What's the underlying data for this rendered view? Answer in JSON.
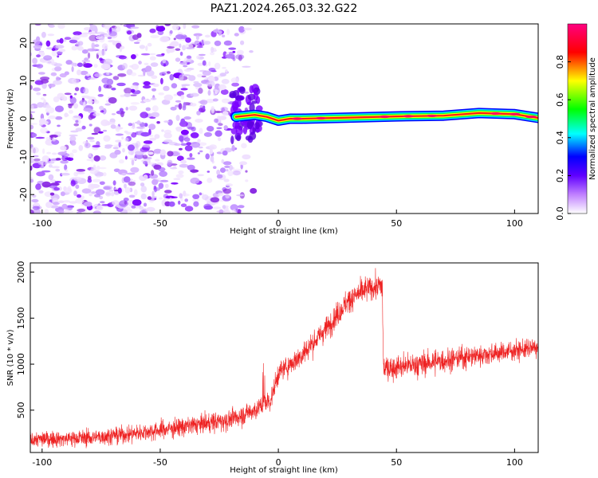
{
  "figure": {
    "title": "PAZ1.2024.265.03.32.G22"
  },
  "chart_data": [
    {
      "type": "heatmap",
      "xlabel": "Height of straight line (km)",
      "ylabel": "Frequency (Hz)",
      "xlim": [
        -105,
        110
      ],
      "ylim": [
        -25,
        25
      ],
      "xticks": [
        -100,
        -50,
        0,
        50,
        100
      ],
      "yticks": [
        20,
        10,
        0,
        -10,
        -20
      ],
      "colorbar": {
        "label": "Normalized spectral amplitude",
        "range": [
          0,
          1
        ],
        "ticks": [
          0.0,
          0.2,
          0.4,
          0.6,
          0.8
        ],
        "colors": [
          "#ffffff",
          "#8b00ff",
          "#0000ff",
          "#00ffff",
          "#00ff00",
          "#ffff00",
          "#ff0000",
          "#ff0080"
        ]
      },
      "noise_region": {
        "x_start": -105,
        "x_end": -8,
        "f_min": -25,
        "f_max": 25,
        "amplitude": "low (0.0-0.25)"
      },
      "ridge": [
        {
          "x": -18,
          "f": 0.5
        },
        {
          "x": -10,
          "f": 1.0
        },
        {
          "x": -5,
          "f": 0.5
        },
        {
          "x": 0,
          "f": -0.5
        },
        {
          "x": 5,
          "f": 0.0
        },
        {
          "x": 10,
          "f": 0.0
        },
        {
          "x": 30,
          "f": 0.3
        },
        {
          "x": 50,
          "f": 0.6
        },
        {
          "x": 70,
          "f": 0.8
        },
        {
          "x": 85,
          "f": 1.5
        },
        {
          "x": 100,
          "f": 1.2
        },
        {
          "x": 110,
          "f": 0.2
        }
      ]
    },
    {
      "type": "line",
      "xlabel": "Height of straight line (km)",
      "ylabel": "SNR (10 * v/v)",
      "xlim": [
        -105,
        110
      ],
      "ylim": [
        40,
        2100
      ],
      "xticks": [
        -100,
        -50,
        0,
        50,
        100
      ],
      "yticks": [
        500,
        1000,
        1500,
        2000
      ],
      "color": "#ee2222",
      "trend": [
        {
          "x": -105,
          "y": 180
        },
        {
          "x": -80,
          "y": 200
        },
        {
          "x": -60,
          "y": 250
        },
        {
          "x": -40,
          "y": 320
        },
        {
          "x": -20,
          "y": 400
        },
        {
          "x": -10,
          "y": 500
        },
        {
          "x": -3,
          "y": 620
        },
        {
          "x": 0,
          "y": 900
        },
        {
          "x": 10,
          "y": 1100
        },
        {
          "x": 20,
          "y": 1380
        },
        {
          "x": 30,
          "y": 1700
        },
        {
          "x": 38,
          "y": 1820
        },
        {
          "x": 44,
          "y": 1850
        },
        {
          "x": 44.5,
          "y": 950
        },
        {
          "x": 60,
          "y": 1000
        },
        {
          "x": 80,
          "y": 1080
        },
        {
          "x": 95,
          "y": 1130
        },
        {
          "x": 110,
          "y": 1180
        }
      ],
      "noise_amplitude": [
        {
          "x": -105,
          "a": 130
        },
        {
          "x": -20,
          "a": 170
        },
        {
          "x": 0,
          "a": 180
        },
        {
          "x": 44,
          "a": 220
        },
        {
          "x": 110,
          "a": 150
        }
      ]
    }
  ]
}
